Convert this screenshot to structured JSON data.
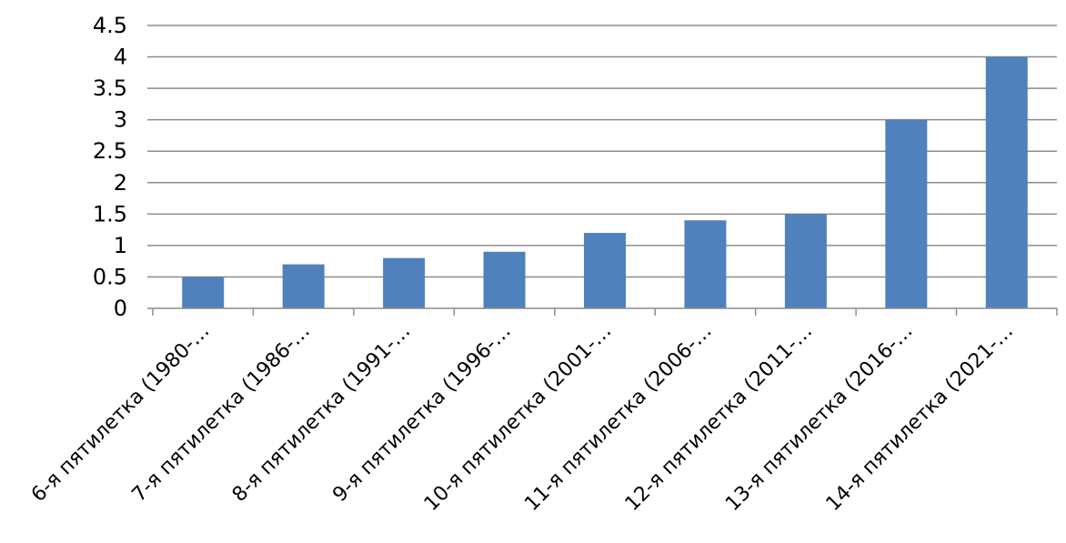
{
  "chart_data": {
    "type": "bar",
    "categories": [
      "6-я пятилетка (1980-…",
      "7-я пятилетка (1986-…",
      "8-я пятилетка (1991-…",
      "9-я пятилетка (1996-…",
      "10-я пятилетка (2001-…",
      "11-я пятилетка (2006-…",
      "12-я пятилетка (2011-…",
      "13-я пятилетка (2016-…",
      "14-я пятилетка (2021-…"
    ],
    "series": [
      {
        "values": [
          0.5,
          0.7,
          0.8,
          0.9,
          1.2,
          1.4,
          1.5,
          3.0,
          4.0
        ]
      }
    ],
    "ylim": [
      0,
      4.5
    ],
    "yticks": [
      "0",
      "0.5",
      "1",
      "1.5",
      "2",
      "2.5",
      "3",
      "3.5",
      "4",
      "4.5"
    ],
    "grid": true,
    "legend": "none",
    "colors": {
      "bar": "#4f81bd",
      "grid": "#8c8c8c"
    }
  }
}
